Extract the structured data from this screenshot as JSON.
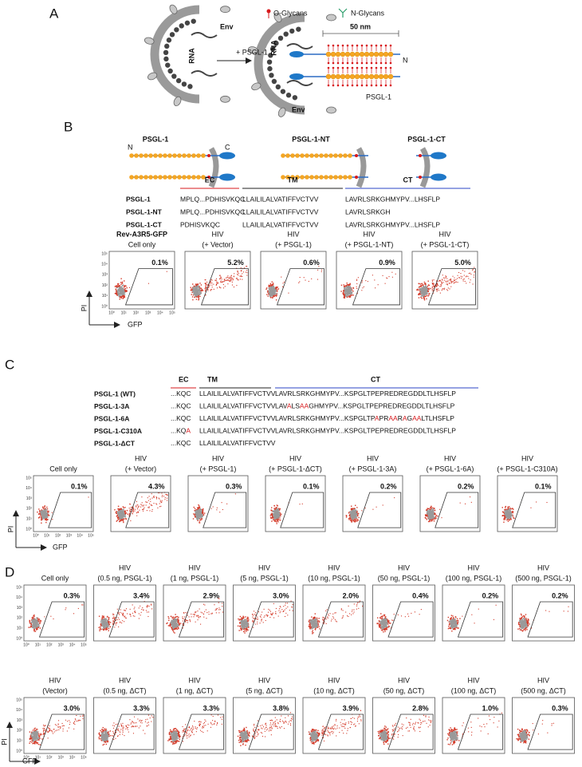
{
  "panel_a": {
    "label": "A",
    "legend_o": "O-Glycans",
    "legend_n": "N-Glycans",
    "env_left": "Env",
    "rna_left": "RNA",
    "arrow": "+ PSGL-1",
    "rna_right": "RNA",
    "scale": "50 nm",
    "n_terminus": "N",
    "psgl1": "PSGL-1",
    "env_right": "Env"
  },
  "panel_b": {
    "label": "B",
    "constructs": [
      "PSGL-1",
      "PSGL-1-NT",
      "PSGL-1-CT"
    ],
    "n_terminus": "N",
    "c_terminus": "C",
    "domains": [
      "EC",
      "TM",
      "CT"
    ],
    "rows": [
      {
        "name": "PSGL-1",
        "seq": [
          "MPLQ...PDHISVKQC",
          "LLAILILALVATIFFVCTVV",
          "LAVRLSRKGHMYPV...LHSFLP"
        ]
      },
      {
        "name": "PSGL-1-NT",
        "seq": [
          "MPLQ...PDHISVKQC",
          "LLAILILALVATIFFVCTVV",
          "LAVRLSRKGH"
        ]
      },
      {
        "name": "PSGL-1-CT",
        "seq": [
          "PDHISVKQC",
          "LLAILILALVATIFFVCTVV",
          "LAVRLSRKGHMYPV...LHSFLP"
        ]
      }
    ],
    "plots": [
      {
        "title": [
          "Rev-A3R5-GFP",
          "Cell only"
        ],
        "percent": "0.1%"
      },
      {
        "title": [
          "HIV",
          "(+ Vector)"
        ],
        "percent": "5.2%"
      },
      {
        "title": [
          "HIV",
          "(+ PSGL-1)"
        ],
        "percent": "0.6%"
      },
      {
        "title": [
          "HIV",
          "(+ PSGL-1-NT)"
        ],
        "percent": "0.9%"
      },
      {
        "title": [
          "HIV",
          "(+ PSGL-1-CT)"
        ],
        "percent": "5.0%"
      }
    ],
    "y_axis": "PI",
    "x_axis": "GFP"
  },
  "panel_c": {
    "label": "C",
    "domains": [
      "EC",
      "TM",
      "CT"
    ],
    "highlight_color": "#d7191c",
    "rows": [
      {
        "name": "PSGL-1 (WT)",
        "seq": [
          [
            "...KQC"
          ],
          [
            "LLAILILALVATIFFVCTVV"
          ],
          [
            "LAVRLSRKGHMYPV...KSPGLTPEPREDREGDDLTLHSFLP"
          ]
        ]
      },
      {
        "name": "PSGL-1-3A",
        "seq": [
          [
            "...KQC"
          ],
          [
            "LLAILILALVATIFFVCTVV"
          ],
          [
            "LAV",
            "A",
            "LS",
            "AA",
            "GHMYPV...KSPGLTPEPREDREGDDLTLHSFLP"
          ]
        ]
      },
      {
        "name": "PSGL-1-6A",
        "seq": [
          [
            "...KQC"
          ],
          [
            "LLAILILALVATIFFVCTVV"
          ],
          [
            "LAVRLSRKGHMYPV...KSPGLTP",
            "A",
            "PR",
            "AA",
            "R",
            "A",
            "G",
            "AA",
            "LTLHSFLP"
          ]
        ]
      },
      {
        "name": "PSGL-1-C310A",
        "seq": [
          [
            "...KQ",
            "A"
          ],
          [
            "LLAILILALVATIFFVCTVV"
          ],
          [
            "LAVRLSRKGHMYPV...KSPGLTPEPREDREGDDLTLHSFLP"
          ]
        ]
      },
      {
        "name": "PSGL-1-ΔCT",
        "seq": [
          [
            "...KQC"
          ],
          [
            "LLAILILALVATIFFVCTVV"
          ]
        ]
      }
    ],
    "plots": [
      {
        "title": [
          "Cell only"
        ],
        "percent": "0.1%"
      },
      {
        "title": [
          "HIV",
          "(+ Vector)"
        ],
        "percent": "4.3%"
      },
      {
        "title": [
          "HIV",
          "(+ PSGL-1)"
        ],
        "percent": "0.3%"
      },
      {
        "title": [
          "HIV",
          "(+ PSGL-1-ΔCT)"
        ],
        "percent": "0.1%"
      },
      {
        "title": [
          "HIV",
          "(+ PSGL-1-3A)"
        ],
        "percent": "0.2%"
      },
      {
        "title": [
          "HIV",
          "(+ PSGL-1-6A)"
        ],
        "percent": "0.2%"
      },
      {
        "title": [
          "HIV",
          "(+ PSGL-1-C310A)"
        ],
        "percent": "0.1%"
      }
    ],
    "y_axis": "PI",
    "x_axis": "GFP"
  },
  "panel_d": {
    "label": "D",
    "rows": [
      [
        {
          "title": [
            "Cell only"
          ],
          "percent": "0.3%"
        },
        {
          "title": [
            "HIV",
            "(0.5 ng, PSGL-1)"
          ],
          "percent": "3.4%"
        },
        {
          "title": [
            "HIV",
            "(1 ng, PSGL-1)"
          ],
          "percent": "2.9%"
        },
        {
          "title": [
            "HIV",
            "(5 ng, PSGL-1)"
          ],
          "percent": "3.0%"
        },
        {
          "title": [
            "HIV",
            "(10 ng, PSGL-1)"
          ],
          "percent": "2.0%"
        },
        {
          "title": [
            "HIV",
            "(50 ng, PSGL-1)"
          ],
          "percent": "0.4%"
        },
        {
          "title": [
            "HIV",
            "(100 ng, PSGL-1)"
          ],
          "percent": "0.2%"
        },
        {
          "title": [
            "HIV",
            "(500 ng, PSGL-1)"
          ],
          "percent": "0.2%"
        }
      ],
      [
        {
          "title": [
            "HIV",
            "(Vector)"
          ],
          "percent": "3.0%"
        },
        {
          "title": [
            "HIV",
            "(0.5 ng, ΔCT)"
          ],
          "percent": "3.3%"
        },
        {
          "title": [
            "HIV",
            "(1 ng, ΔCT)"
          ],
          "percent": "3.3%"
        },
        {
          "title": [
            "HIV",
            "(5 ng, ΔCT)"
          ],
          "percent": "3.8%"
        },
        {
          "title": [
            "HIV",
            "(10 ng, ΔCT)"
          ],
          "percent": "3.9%"
        },
        {
          "title": [
            "HIV",
            "(50 ng, ΔCT)"
          ],
          "percent": "2.8%"
        },
        {
          "title": [
            "HIV",
            "(100 ng, ΔCT)"
          ],
          "percent": "1.0%"
        },
        {
          "title": [
            "HIV",
            "(500 ng, ΔCT)"
          ],
          "percent": "0.3%"
        }
      ]
    ],
    "y_axis": "PI",
    "x_axis": "GFP"
  },
  "flow_ticks": [
    "10⁰",
    "10¹",
    "10²",
    "10³",
    "10⁴",
    "10⁵"
  ]
}
